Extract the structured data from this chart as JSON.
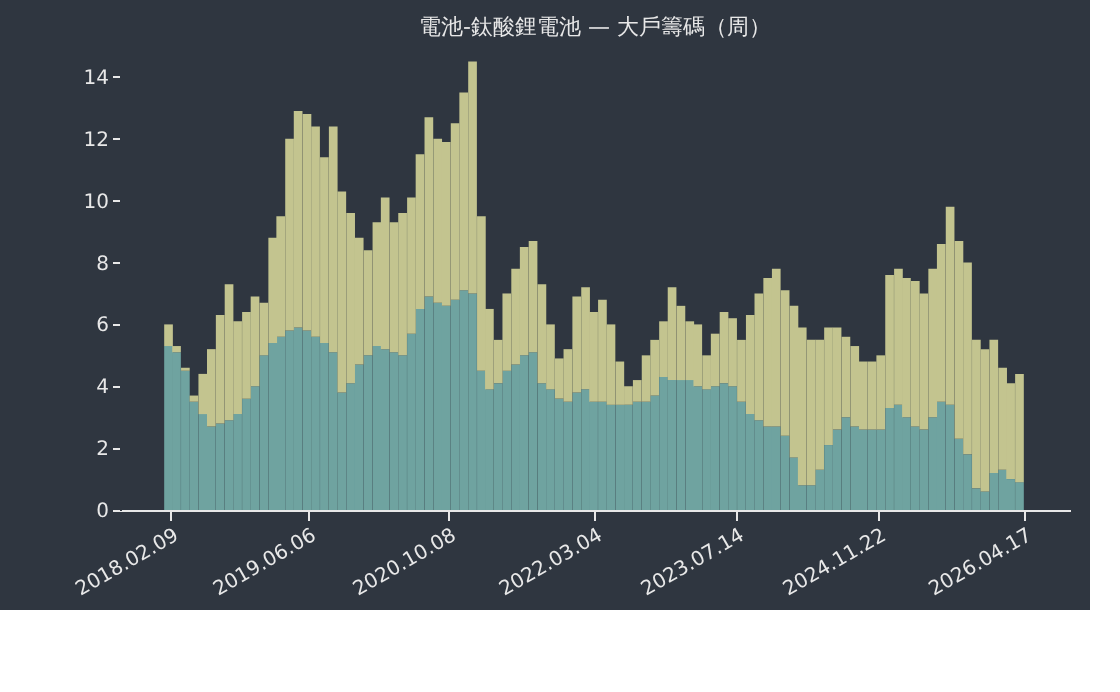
{
  "chart_data": {
    "type": "bar",
    "stacked": true,
    "title": "電池-鈦酸鋰電池 — 大戶籌碼（周）",
    "x": [
      "2018-02",
      "2018-03",
      "2018-04",
      "2018-05",
      "2018-06",
      "2018-07",
      "2018-08",
      "2018-09",
      "2018-10",
      "2018-11",
      "2018-12",
      "2019-01",
      "2019-02",
      "2019-03",
      "2019-04",
      "2019-05",
      "2019-06",
      "2019-07",
      "2019-08",
      "2019-09",
      "2019-10",
      "2019-11",
      "2019-12",
      "2020-01",
      "2020-02",
      "2020-03",
      "2020-04",
      "2020-05",
      "2020-06",
      "2020-07",
      "2020-08",
      "2020-09",
      "2020-10",
      "2020-11",
      "2020-12",
      "2021-01",
      "2021-02",
      "2021-03",
      "2021-04",
      "2021-05",
      "2021-06",
      "2021-07",
      "2021-08",
      "2021-09",
      "2021-10",
      "2021-11",
      "2021-12",
      "2022-01",
      "2022-02",
      "2022-03",
      "2022-04",
      "2022-05",
      "2022-06",
      "2022-07",
      "2022-08",
      "2022-09",
      "2022-10",
      "2022-11",
      "2022-12",
      "2023-01",
      "2023-02",
      "2023-03",
      "2023-04",
      "2023-05",
      "2023-06",
      "2023-07",
      "2023-08",
      "2023-09",
      "2023-10",
      "2023-11",
      "2023-12",
      "2024-01",
      "2024-02",
      "2024-03",
      "2024-04",
      "2024-05",
      "2024-06",
      "2024-07",
      "2024-08",
      "2024-09",
      "2024-10",
      "2024-11",
      "2024-12",
      "2025-01",
      "2025-02",
      "2025-03",
      "2025-04",
      "2025-05",
      "2025-06",
      "2025-07",
      "2025-08",
      "2025-09",
      "2025-10",
      "2025-11",
      "2025-12",
      "2026-01",
      "2026-02",
      "2026-03",
      "2026-04"
    ],
    "series": [
      {
        "color": "#6fa3a0",
        "values": [
          5.3,
          5.1,
          4.5,
          3.5,
          3.1,
          2.7,
          2.8,
          2.9,
          3.1,
          3.6,
          4.0,
          5.0,
          5.4,
          5.6,
          5.8,
          5.9,
          5.8,
          5.6,
          5.4,
          5.1,
          3.8,
          4.1,
          4.7,
          5.0,
          5.3,
          5.2,
          5.1,
          5.0,
          5.7,
          6.5,
          6.9,
          6.7,
          6.6,
          6.8,
          7.1,
          7.0,
          4.5,
          3.9,
          4.1,
          4.5,
          4.7,
          5.0,
          5.1,
          4.1,
          3.9,
          3.6,
          3.5,
          3.8,
          3.9,
          3.5,
          3.5,
          3.4,
          3.4,
          3.4,
          3.5,
          3.5,
          3.7,
          4.3,
          4.2,
          4.2,
          4.2,
          4.0,
          3.9,
          4.0,
          4.1,
          4.0,
          3.5,
          3.1,
          2.9,
          2.7,
          2.7,
          2.4,
          1.7,
          0.8,
          0.8,
          1.3,
          2.1,
          2.6,
          3.0,
          2.7,
          2.6,
          2.6,
          2.6,
          3.3,
          3.4,
          3.0,
          2.7,
          2.6,
          3.0,
          3.5,
          3.4,
          2.3,
          1.8,
          0.7,
          0.6,
          1.2,
          1.3,
          1.0,
          0.9
        ]
      },
      {
        "color": "#c3c48f",
        "values": [
          0.7,
          0.2,
          0.1,
          0.2,
          1.3,
          2.5,
          3.5,
          4.4,
          3.0,
          2.8,
          2.9,
          1.7,
          3.4,
          3.9,
          6.2,
          7.0,
          7.0,
          6.8,
          6.0,
          7.3,
          6.5,
          5.5,
          4.1,
          3.4,
          4.0,
          4.9,
          4.2,
          4.6,
          4.4,
          5.0,
          5.8,
          5.3,
          5.3,
          5.7,
          6.4,
          7.5,
          5.0,
          2.6,
          1.4,
          2.5,
          3.1,
          3.5,
          3.6,
          3.2,
          2.1,
          1.3,
          1.7,
          3.1,
          3.3,
          2.9,
          3.3,
          2.6,
          1.4,
          0.6,
          0.7,
          1.5,
          1.8,
          1.8,
          3.0,
          2.4,
          1.9,
          2.0,
          1.1,
          1.7,
          2.3,
          2.2,
          2.0,
          3.2,
          4.1,
          4.8,
          5.1,
          4.7,
          4.9,
          5.1,
          4.7,
          4.2,
          3.8,
          3.3,
          2.6,
          2.6,
          2.2,
          2.2,
          2.4,
          4.3,
          4.4,
          4.5,
          4.7,
          4.4,
          4.8,
          5.1,
          6.4,
          6.4,
          6.2,
          4.8,
          4.6,
          4.3,
          3.3,
          3.1,
          3.5
        ]
      }
    ],
    "ylim": [
      0,
      15
    ],
    "yticks": [
      0,
      2,
      4,
      6,
      8,
      10,
      12,
      14
    ],
    "xlim": [
      "2017-08-15",
      "2026-09-25"
    ],
    "xticks": [
      {
        "value": "2018-02-09",
        "label": "2018.02.09"
      },
      {
        "value": "2019-06-06",
        "label": "2019.06.06"
      },
      {
        "value": "2020-10-08",
        "label": "2020.10.08"
      },
      {
        "value": "2022-03-04",
        "label": "2022.03.04"
      },
      {
        "value": "2023-07-14",
        "label": "2023.07.14"
      },
      {
        "value": "2024-11-22",
        "label": "2024.11.22"
      },
      {
        "value": "2026-04-17",
        "label": "2026.04.17"
      }
    ],
    "grid": false,
    "legend": false
  }
}
